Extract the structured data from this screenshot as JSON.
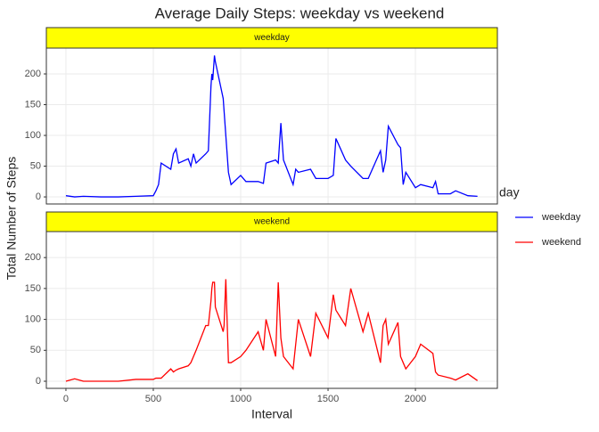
{
  "chart_data": {
    "type": "line",
    "facet": true,
    "title": "Average Daily Steps: weekday vs weekend",
    "x_label": "Interval",
    "y_label": "Total Number of Steps",
    "legend_title": "day",
    "legend": "right",
    "grid": true,
    "xlim": [
      -112,
      2469
    ],
    "xticks": [
      0,
      500,
      1000,
      1500,
      2000
    ],
    "ylim": [
      -11.5,
      242
    ],
    "yticks": [
      0,
      50,
      100,
      150,
      200
    ],
    "x": [
      0,
      50,
      100,
      200,
      300,
      400,
      500,
      515,
      530,
      545,
      600,
      615,
      630,
      645,
      700,
      715,
      730,
      745,
      800,
      815,
      830,
      835,
      840,
      850,
      855,
      900,
      905,
      915,
      930,
      945,
      1000,
      1030,
      1100,
      1130,
      1145,
      1200,
      1215,
      1230,
      1245,
      1300,
      1315,
      1330,
      1400,
      1430,
      1500,
      1530,
      1545,
      1600,
      1630,
      1700,
      1730,
      1800,
      1815,
      1830,
      1845,
      1900,
      1915,
      1930,
      1945,
      2000,
      2030,
      2100,
      2115,
      2130,
      2200,
      2230,
      2300,
      2355
    ],
    "series": [
      {
        "name": "weekday",
        "color": "#0000ff",
        "values": [
          2,
          0,
          1,
          0,
          0,
          1,
          2,
          10,
          20,
          55,
          45,
          70,
          78,
          55,
          62,
          50,
          70,
          55,
          70,
          75,
          180,
          200,
          190,
          230,
          220,
          160,
          140,
          100,
          40,
          20,
          35,
          25,
          25,
          22,
          55,
          60,
          55,
          120,
          60,
          20,
          45,
          40,
          45,
          30,
          30,
          35,
          95,
          60,
          50,
          30,
          30,
          75,
          40,
          60,
          115,
          85,
          80,
          20,
          40,
          15,
          20,
          15,
          25,
          5,
          5,
          10,
          2,
          1
        ]
      },
      {
        "name": "weekend",
        "color": "#ff0000",
        "values": [
          0,
          4,
          0,
          0,
          0,
          3,
          3,
          5,
          5,
          5,
          20,
          15,
          18,
          20,
          25,
          30,
          40,
          50,
          90,
          90,
          130,
          150,
          160,
          160,
          120,
          80,
          90,
          165,
          30,
          30,
          40,
          50,
          80,
          50,
          100,
          40,
          160,
          70,
          40,
          20,
          60,
          100,
          40,
          110,
          70,
          140,
          115,
          90,
          150,
          80,
          110,
          30,
          90,
          100,
          60,
          95,
          40,
          30,
          20,
          40,
          60,
          45,
          15,
          10,
          5,
          2,
          12,
          1
        ]
      }
    ]
  }
}
